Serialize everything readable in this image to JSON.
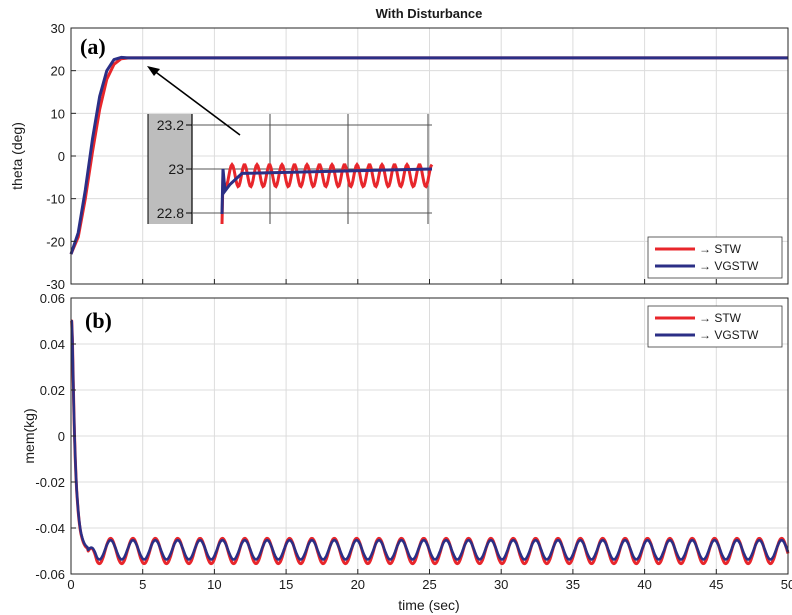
{
  "chart_data": [
    {
      "type": "line",
      "panel_label": "(a)",
      "title": "With Disturbance",
      "xlabel": "",
      "ylabel": "theta (deg)",
      "xlim": [
        0,
        50
      ],
      "ylim": [
        -30,
        30
      ],
      "xticks": [
        0,
        5,
        10,
        15,
        20,
        25,
        30,
        35,
        40,
        45,
        50
      ],
      "yticks": [
        -30,
        -20,
        -10,
        0,
        10,
        20,
        30
      ],
      "grid": true,
      "legend_position": "bottom-right",
      "series": [
        {
          "name": "→ STW",
          "color": "#e8262b",
          "x": [
            0,
            0.5,
            1,
            1.5,
            2,
            2.5,
            3,
            3.5,
            4,
            5,
            10,
            20,
            30,
            40,
            50
          ],
          "y": [
            -23,
            -19,
            -10,
            1,
            11,
            18,
            21.5,
            22.8,
            23,
            23,
            23,
            23,
            23,
            23,
            23
          ]
        },
        {
          "name": "→ VGSTW",
          "color": "#2b2f86",
          "x": [
            0,
            0.5,
            1,
            1.5,
            2,
            2.5,
            3,
            3.5,
            4,
            5,
            10,
            20,
            30,
            40,
            50
          ],
          "y": [
            -23,
            -18,
            -8,
            4,
            14,
            20,
            22.6,
            23.1,
            23,
            23,
            23,
            23,
            23,
            23,
            23
          ]
        }
      ],
      "inset": {
        "yticks": [
          "23.2",
          "23",
          "22.8"
        ],
        "ylim": [
          22.75,
          23.25
        ],
        "series": [
          {
            "name": "STW",
            "color": "#e8262b",
            "mean": 22.97,
            "amplitude": 0.05,
            "cycles": 16,
            "start": -0.2
          },
          {
            "name": "VGSTW",
            "color": "#2b2f86",
            "settle": 23.0,
            "start": -0.2
          }
        ]
      }
    },
    {
      "type": "line",
      "panel_label": "(b)",
      "title": "",
      "xlabel": "time (sec)",
      "ylabel": "mem(kg)",
      "xlim": [
        0,
        50
      ],
      "ylim": [
        -0.06,
        0.06
      ],
      "xticks": [
        0,
        5,
        10,
        15,
        20,
        25,
        30,
        35,
        40,
        45,
        50
      ],
      "yticks": [
        -0.06,
        -0.04,
        -0.02,
        0,
        0.02,
        0.04,
        0.06
      ],
      "grid": true,
      "legend_position": "top-right",
      "series": [
        {
          "name": "→ STW",
          "color": "#e8262b",
          "initial": 0.05,
          "mean": -0.05,
          "amplitude": 0.0055,
          "period": 1.56
        },
        {
          "name": "→ VGSTW",
          "color": "#2b2f86",
          "initial": 0.05,
          "mean": -0.0495,
          "amplitude": 0.0042,
          "period": 1.56
        }
      ]
    }
  ]
}
